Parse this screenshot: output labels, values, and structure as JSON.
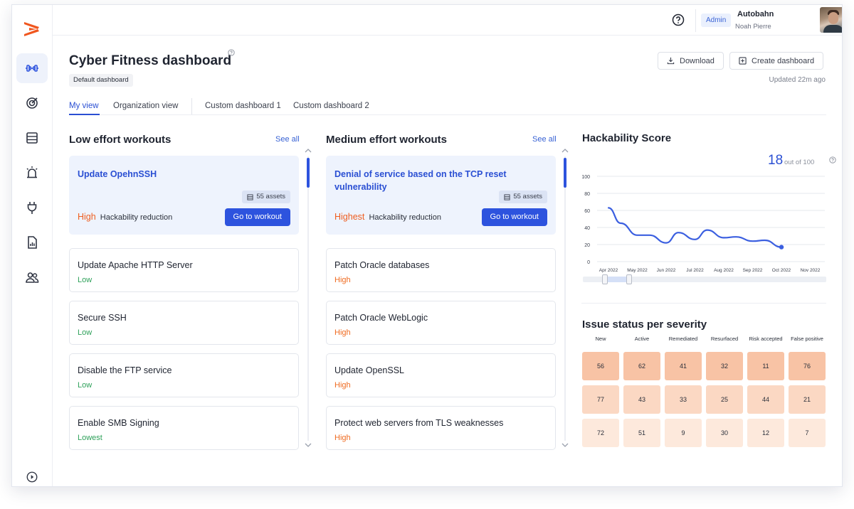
{
  "header": {
    "admin_badge": "Admin",
    "org_name": "Autobahn",
    "user_name": "Noah Pierre"
  },
  "sidebar": {
    "items": [
      {
        "icon": "dumbbell-icon",
        "active": true
      },
      {
        "icon": "target-icon"
      },
      {
        "icon": "server-icon"
      },
      {
        "icon": "alarm-icon"
      },
      {
        "icon": "plug-icon"
      },
      {
        "icon": "report-icon"
      },
      {
        "icon": "users-icon"
      }
    ],
    "bottom_icon": "play-circle-icon"
  },
  "page": {
    "title": "Cyber Fitness dashboard",
    "default_badge": "Default dashboard",
    "download_label": "Download",
    "create_label": "Create dashboard",
    "updated": "Updated 22m ago",
    "tabs": [
      "My view",
      "Organization view",
      "Custom dashboard 1",
      "Custom dashboard 2"
    ]
  },
  "low_effort": {
    "title": "Low effort workouts",
    "see_all": "See all",
    "featured": {
      "title": "Update OpehnSSH",
      "assets": "55 assets",
      "level": "High",
      "reduction_label": "Hackability reduction",
      "button": "Go to workout"
    },
    "items": [
      {
        "title": "Update Apache HTTP Server",
        "level": "Low"
      },
      {
        "title": "Secure SSH",
        "level": "Low"
      },
      {
        "title": "Disable the FTP service",
        "level": "Low"
      },
      {
        "title": "Enable SMB Signing",
        "level": "Lowest"
      }
    ]
  },
  "medium_effort": {
    "title": "Medium effort workouts",
    "see_all": "See all",
    "featured": {
      "title": "Denial of service based on the TCP reset vulnerability",
      "assets": "55 assets",
      "level": "Highest",
      "reduction_label": "Hackability reduction",
      "button": "Go to workout"
    },
    "items": [
      {
        "title": "Patch Oracle databases",
        "level": "High"
      },
      {
        "title": "Patch Oracle WebLogic",
        "level": "High"
      },
      {
        "title": "Update OpenSSL",
        "level": "High"
      },
      {
        "title": "Protect web servers from TLS weaknesses",
        "level": "High"
      }
    ]
  },
  "hackability": {
    "title": "Hackability Score",
    "score": "18",
    "out_of": "out of 100"
  },
  "chart_data": {
    "type": "line",
    "title": "Hackability Score",
    "y_ticks": [
      "100",
      "80",
      "60",
      "40",
      "20",
      "0"
    ],
    "ylim": [
      0,
      100
    ],
    "x_ticks": [
      "Apr 2022",
      "May 2022",
      "Jun 2022",
      "Jul 2022",
      "Aug 2022",
      "Sep 2022",
      "Oct 2022",
      "Nov 2022"
    ],
    "x": [
      "Apr 2022",
      "Apr 2022",
      "May 2022",
      "May 2022",
      "Jun 2022",
      "Jun 2022",
      "Jul 2022",
      "Jul 2022",
      "Aug 2022",
      "Aug 2022",
      "Sep 2022",
      "Sep 2022",
      "Oct 2022"
    ],
    "series": [
      {
        "values": [
          63,
          45,
          31,
          31,
          22,
          34,
          26,
          37,
          28,
          29,
          24,
          25,
          17
        ]
      }
    ],
    "grid": true,
    "color": "#3b5fe0"
  },
  "severity": {
    "title": "Issue status per severity",
    "columns": [
      "New",
      "Active",
      "Remediated",
      "Resurfaced",
      "Risk accepted",
      "False positive"
    ],
    "rows": [
      [
        "56",
        "62",
        "41",
        "32",
        "11",
        "76"
      ],
      [
        "77",
        "43",
        "33",
        "25",
        "44",
        "21"
      ],
      [
        "72",
        "51",
        "9",
        "30",
        "12",
        "7"
      ]
    ],
    "row_colors": [
      "#f8c3a5",
      "#fbd8c3",
      "#fde9dc"
    ]
  }
}
